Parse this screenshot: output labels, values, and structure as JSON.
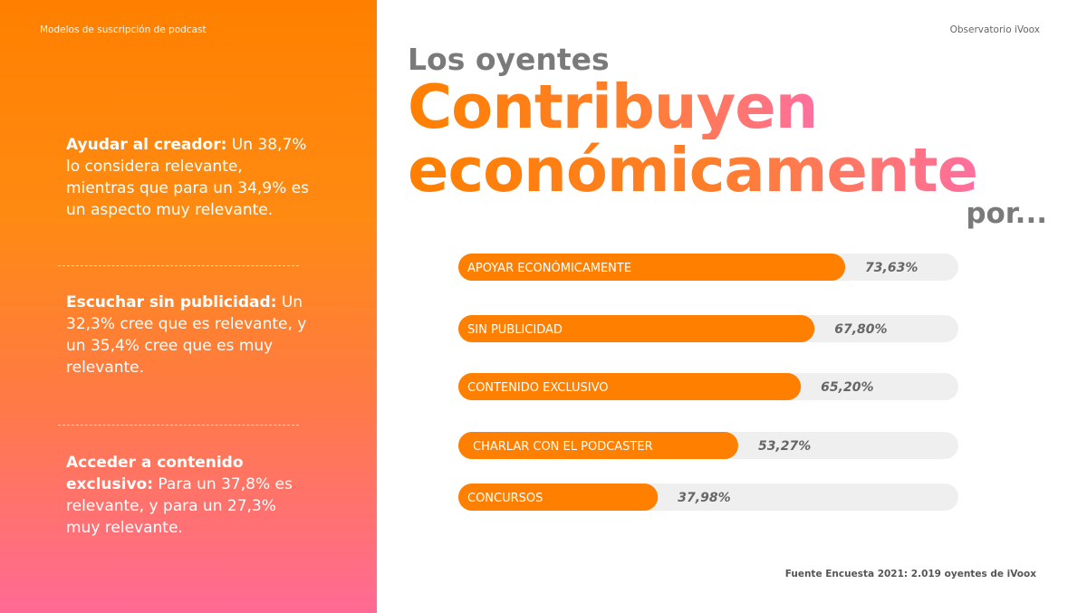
{
  "header": {
    "left": "Modelos de suscripción de podcast",
    "right": "Observatorio iVoox"
  },
  "sidebar": {
    "blocks": [
      {
        "bold": "Ayudar al creador:",
        "text": " Un 38,7% lo considera relevante, mientras que para un 34,9% es un aspecto muy relevante."
      },
      {
        "bold": "Escuchar sin publicidad:",
        "text": " Un 32,3% cree que es relevante, y un 35,4% cree que es muy relevante."
      },
      {
        "bold": "Acceder a contenido exclusivo:",
        "text": " Para un 37,8% es relevante, y para un 27,3% muy relevante."
      }
    ]
  },
  "title": {
    "line1": "Los oyentes",
    "line2": "Contribuyen",
    "line3": "económicamente",
    "line4": "por..."
  },
  "source": "Fuente Encuesta 2021: 2.019 oyentes de iVoox",
  "colors": {
    "accent": "#ff7f00",
    "track": "#efefef",
    "value_text": "#666666"
  },
  "chart_data": {
    "type": "bar",
    "orientation": "horizontal",
    "categories": [
      "APOYAR ECONÓMICAMENTE",
      "SIN PUBLICIDAD",
      "CONTENIDO EXCLUSIVO",
      "CHARLAR CON EL PODCASTER",
      "CONCURSOS"
    ],
    "values": [
      73.63,
      67.8,
      65.2,
      53.27,
      37.98
    ],
    "value_labels": [
      "73,63%",
      "67,80%",
      "65,20%",
      "53,27%",
      "37,98%"
    ],
    "title": "Los oyentes Contribuyen económicamente por...",
    "xlim": [
      0,
      100
    ]
  }
}
